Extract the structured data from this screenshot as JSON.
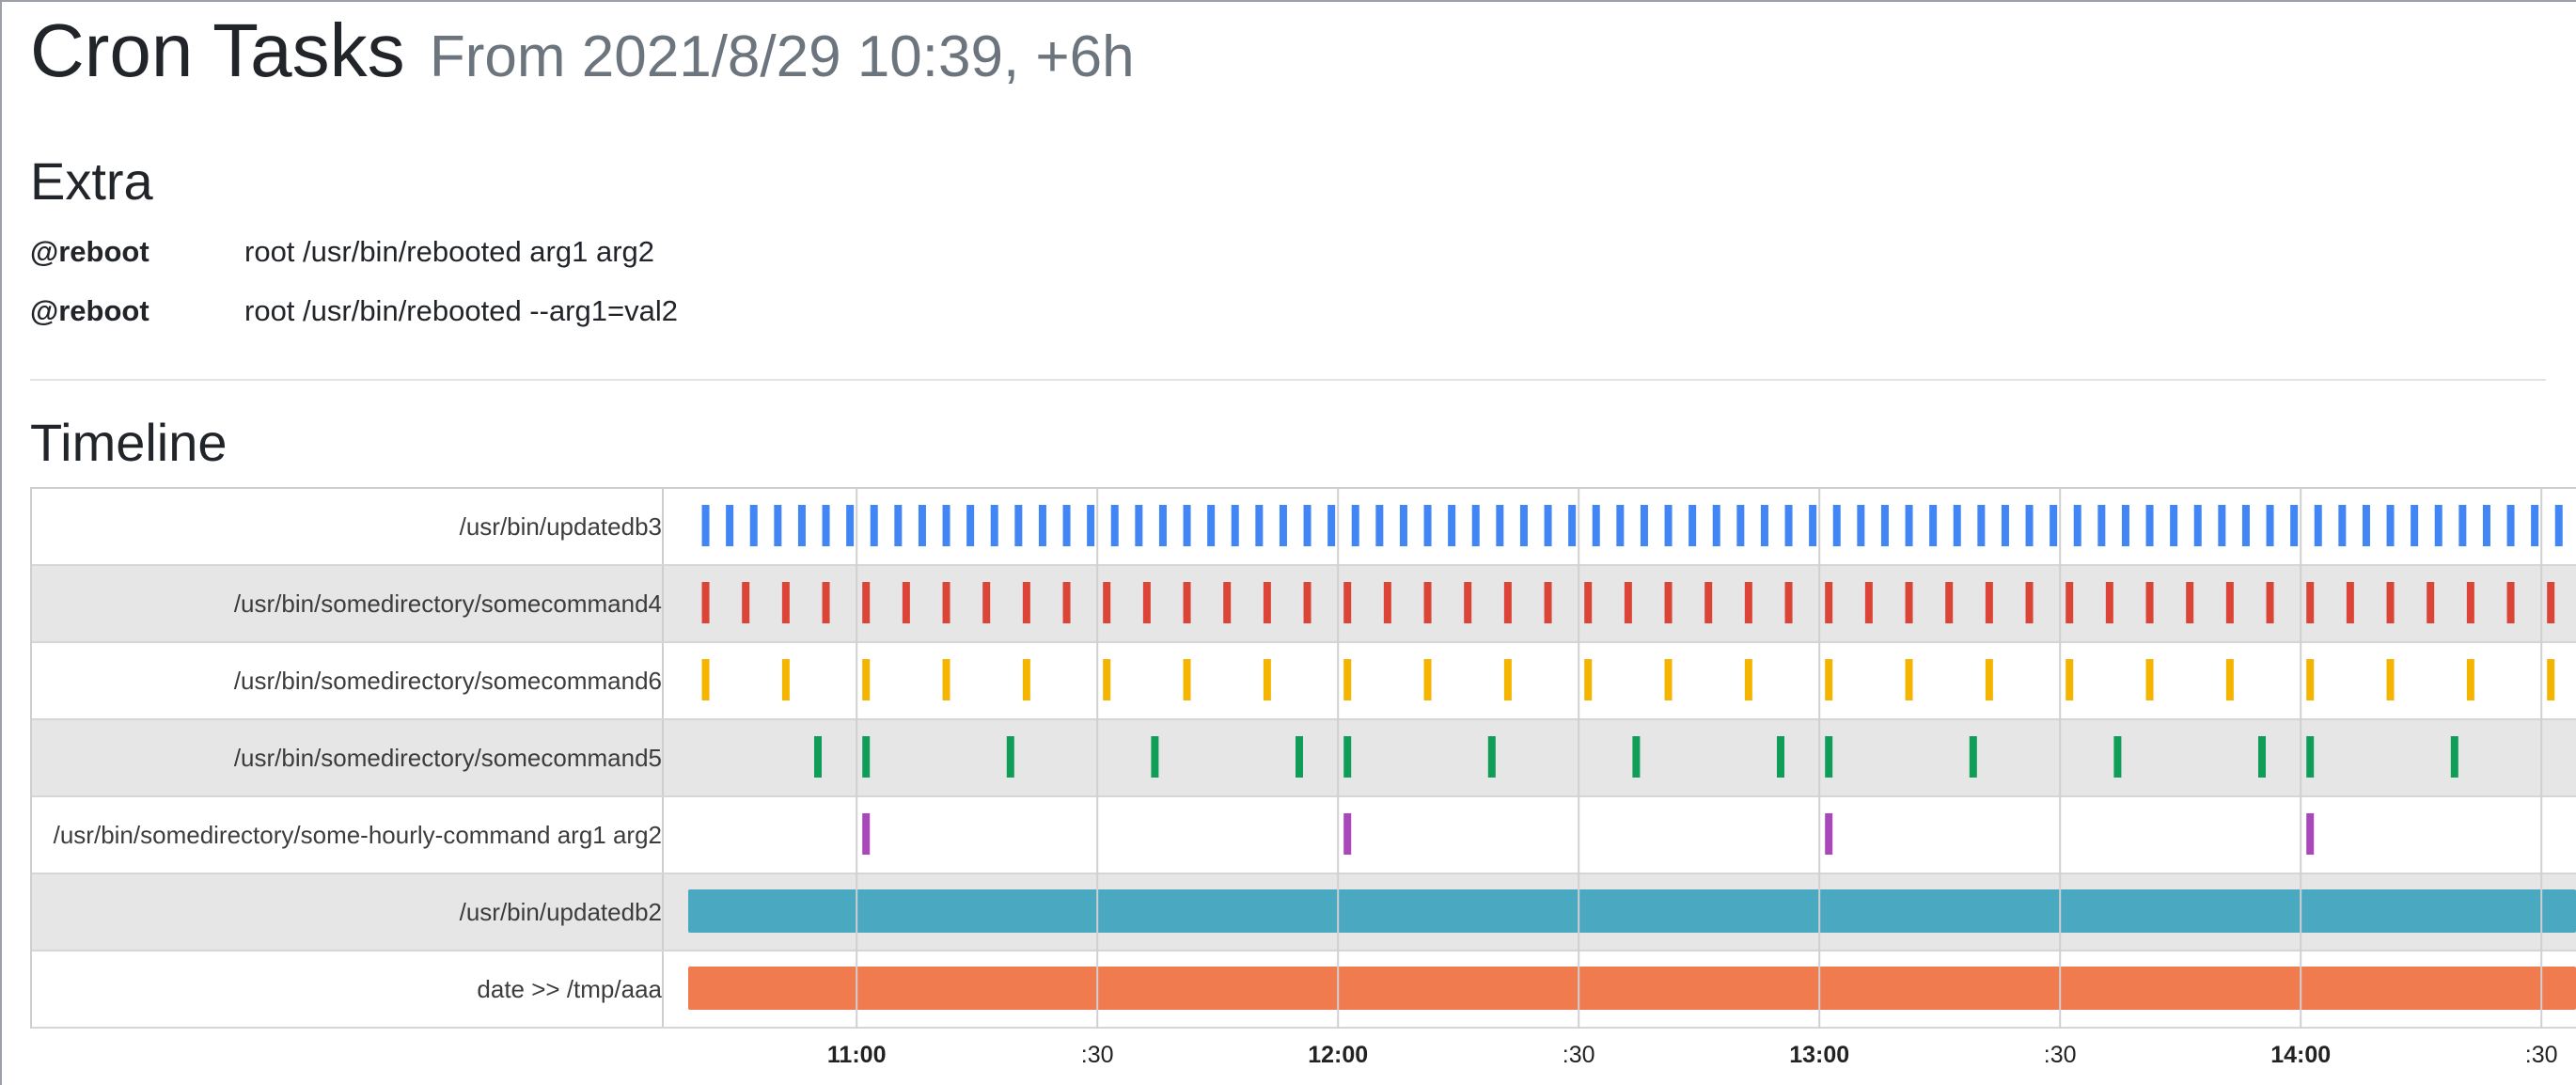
{
  "header": {
    "title": "Cron Tasks",
    "subtitle": "From 2021/8/29 10:39, +6h"
  },
  "extra": {
    "title": "Extra",
    "items": [
      {
        "keyword": "@reboot",
        "command": "root /usr/bin/rebooted arg1 arg2"
      },
      {
        "keyword": "@reboot",
        "command": "root /usr/bin/rebooted --arg1=val2"
      }
    ]
  },
  "timeline": {
    "title": "Timeline",
    "rows": [
      {
        "label": "/usr/bin/updatedb3",
        "color": "#4285f4",
        "type": "ticks",
        "every_minutes": 3,
        "offset_minutes": 1
      },
      {
        "label": "/usr/bin/somedirectory/somecommand4",
        "color": "#db4437",
        "type": "ticks",
        "every_minutes": 5,
        "offset_minutes": 0
      },
      {
        "label": "/usr/bin/somedirectory/somecommand6",
        "color": "#f4b400",
        "type": "ticks",
        "every_minutes": 10,
        "offset_minutes": 0
      },
      {
        "label": "/usr/bin/somedirectory/somecommand5",
        "color": "#0f9d58",
        "type": "ticks",
        "minutes_of_hour": [
          0,
          18,
          36,
          54
        ]
      },
      {
        "label": "/usr/bin/somedirectory/some-hourly-command arg1 arg2",
        "color": "#ab47bc",
        "type": "ticks",
        "minutes_of_hour": [
          0
        ]
      },
      {
        "label": "/usr/bin/updatedb2",
        "color": "#4aa8c0",
        "type": "bar"
      },
      {
        "label": "date >> /tmp/aaa",
        "color": "#ef7b4f",
        "type": "bar"
      }
    ],
    "axis": {
      "start": "10:39",
      "duration_hours": 6,
      "ticks": [
        {
          "time": "11:00",
          "label": "11:00",
          "major": true
        },
        {
          "time": "11:30",
          "label": ":30",
          "major": false
        },
        {
          "time": "12:00",
          "label": "12:00",
          "major": true
        },
        {
          "time": "12:30",
          "label": ":30",
          "major": false
        },
        {
          "time": "13:00",
          "label": "13:00",
          "major": true
        },
        {
          "time": "13:30",
          "label": ":30",
          "major": false
        },
        {
          "time": "14:00",
          "label": "14:00",
          "major": true
        },
        {
          "time": "14:30",
          "label": ":30",
          "major": false
        }
      ]
    }
  }
}
